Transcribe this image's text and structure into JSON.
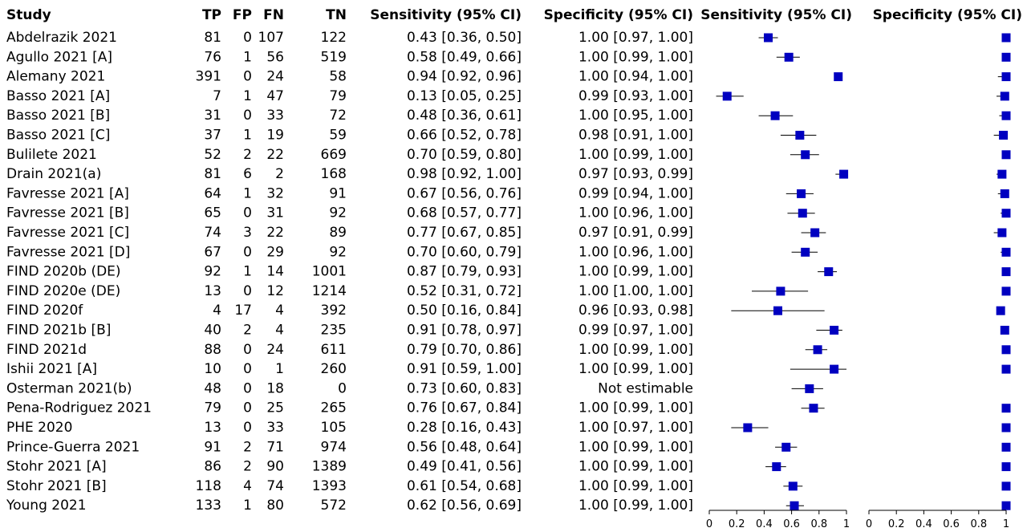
{
  "chart_data": {
    "type": "forest",
    "columns": [
      "Study",
      "TP",
      "FP",
      "FN",
      "TN",
      "Sensitivity (95% CI)",
      "Specificity (95% CI)",
      "Sensitivity (95% CI)",
      "Specificity (95% CI)"
    ],
    "marker_color": "#0000c0",
    "rows": [
      {
        "study": "Abdelrazik 2021",
        "tp": 81,
        "fp": 0,
        "fn": 107,
        "tn": 122,
        "sens_text": "0.43 [0.36, 0.50]",
        "spec_text": "1.00 [0.97, 1.00]",
        "sens": [
          0.43,
          0.36,
          0.5
        ],
        "spec": [
          1.0,
          0.97,
          1.0
        ]
      },
      {
        "study": "Agullo 2021 [A]",
        "tp": 76,
        "fp": 1,
        "fn": 56,
        "tn": 519,
        "sens_text": "0.58 [0.49, 0.66]",
        "spec_text": "1.00 [0.99, 1.00]",
        "sens": [
          0.58,
          0.49,
          0.66
        ],
        "spec": [
          1.0,
          0.99,
          1.0
        ]
      },
      {
        "study": "Alemany 2021",
        "tp": 391,
        "fp": 0,
        "fn": 24,
        "tn": 58,
        "sens_text": "0.94 [0.92, 0.96]",
        "spec_text": "1.00 [0.94, 1.00]",
        "sens": [
          0.94,
          0.92,
          0.96
        ],
        "spec": [
          1.0,
          0.94,
          1.0
        ]
      },
      {
        "study": "Basso 2021 [A]",
        "tp": 7,
        "fp": 1,
        "fn": 47,
        "tn": 79,
        "sens_text": "0.13 [0.05, 0.25]",
        "spec_text": "0.99 [0.93, 1.00]",
        "sens": [
          0.13,
          0.05,
          0.25
        ],
        "spec": [
          0.99,
          0.93,
          1.0
        ]
      },
      {
        "study": "Basso 2021 [B]",
        "tp": 31,
        "fp": 0,
        "fn": 33,
        "tn": 72,
        "sens_text": "0.48 [0.36, 0.61]",
        "spec_text": "1.00 [0.95, 1.00]",
        "sens": [
          0.48,
          0.36,
          0.61
        ],
        "spec": [
          1.0,
          0.95,
          1.0
        ]
      },
      {
        "study": "Basso 2021 [C]",
        "tp": 37,
        "fp": 1,
        "fn": 19,
        "tn": 59,
        "sens_text": "0.66 [0.52, 0.78]",
        "spec_text": "0.98 [0.91, 1.00]",
        "sens": [
          0.66,
          0.52,
          0.78
        ],
        "spec": [
          0.98,
          0.91,
          1.0
        ]
      },
      {
        "study": "Bulilete 2021",
        "tp": 52,
        "fp": 2,
        "fn": 22,
        "tn": 669,
        "sens_text": "0.70 [0.59, 0.80]",
        "spec_text": "1.00 [0.99, 1.00]",
        "sens": [
          0.7,
          0.59,
          0.8
        ],
        "spec": [
          1.0,
          0.99,
          1.0
        ]
      },
      {
        "study": "Drain 2021(a)",
        "tp": 81,
        "fp": 6,
        "fn": 2,
        "tn": 168,
        "sens_text": "0.98 [0.92, 1.00]",
        "spec_text": "0.97 [0.93, 0.99]",
        "sens": [
          0.98,
          0.92,
          1.0
        ],
        "spec": [
          0.97,
          0.93,
          0.99
        ]
      },
      {
        "study": "Favresse 2021 [A]",
        "tp": 64,
        "fp": 1,
        "fn": 32,
        "tn": 91,
        "sens_text": "0.67 [0.56, 0.76]",
        "spec_text": "0.99 [0.94, 1.00]",
        "sens": [
          0.67,
          0.56,
          0.76
        ],
        "spec": [
          0.99,
          0.94,
          1.0
        ]
      },
      {
        "study": "Favresse 2021 [B]",
        "tp": 65,
        "fp": 0,
        "fn": 31,
        "tn": 92,
        "sens_text": "0.68 [0.57, 0.77]",
        "spec_text": "1.00 [0.96, 1.00]",
        "sens": [
          0.68,
          0.57,
          0.77
        ],
        "spec": [
          1.0,
          0.96,
          1.0
        ]
      },
      {
        "study": "Favresse 2021 [C]",
        "tp": 74,
        "fp": 3,
        "fn": 22,
        "tn": 89,
        "sens_text": "0.77 [0.67, 0.85]",
        "spec_text": "0.97 [0.91, 0.99]",
        "sens": [
          0.77,
          0.67,
          0.85
        ],
        "spec": [
          0.97,
          0.91,
          0.99
        ]
      },
      {
        "study": "Favresse 2021 [D]",
        "tp": 67,
        "fp": 0,
        "fn": 29,
        "tn": 92,
        "sens_text": "0.70 [0.60, 0.79]",
        "spec_text": "1.00 [0.96, 1.00]",
        "sens": [
          0.7,
          0.6,
          0.79
        ],
        "spec": [
          1.0,
          0.96,
          1.0
        ]
      },
      {
        "study": "FIND 2020b (DE)",
        "tp": 92,
        "fp": 1,
        "fn": 14,
        "tn": 1001,
        "sens_text": "0.87 [0.79, 0.93]",
        "spec_text": "1.00 [0.99, 1.00]",
        "sens": [
          0.87,
          0.79,
          0.93
        ],
        "spec": [
          1.0,
          0.99,
          1.0
        ]
      },
      {
        "study": "FIND 2020e (DE)",
        "tp": 13,
        "fp": 0,
        "fn": 12,
        "tn": 1214,
        "sens_text": "0.52 [0.31, 0.72]",
        "spec_text": "1.00 [1.00, 1.00]",
        "sens": [
          0.52,
          0.31,
          0.72
        ],
        "spec": [
          1.0,
          1.0,
          1.0
        ]
      },
      {
        "study": "FIND 2020f",
        "tp": 4,
        "fp": 17,
        "fn": 4,
        "tn": 392,
        "sens_text": "0.50 [0.16, 0.84]",
        "spec_text": "0.96 [0.93, 0.98]",
        "sens": [
          0.5,
          0.16,
          0.84
        ],
        "spec": [
          0.96,
          0.93,
          0.98
        ]
      },
      {
        "study": "FIND 2021b [B]",
        "tp": 40,
        "fp": 2,
        "fn": 4,
        "tn": 235,
        "sens_text": "0.91 [0.78, 0.97]",
        "spec_text": "0.99 [0.97, 1.00]",
        "sens": [
          0.91,
          0.78,
          0.97
        ],
        "spec": [
          0.99,
          0.97,
          1.0
        ]
      },
      {
        "study": "FIND 2021d",
        "tp": 88,
        "fp": 0,
        "fn": 24,
        "tn": 611,
        "sens_text": "0.79 [0.70, 0.86]",
        "spec_text": "1.00 [0.99, 1.00]",
        "sens": [
          0.79,
          0.7,
          0.86
        ],
        "spec": [
          1.0,
          0.99,
          1.0
        ]
      },
      {
        "study": "Ishii 2021 [A]",
        "tp": 10,
        "fp": 0,
        "fn": 1,
        "tn": 260,
        "sens_text": "0.91 [0.59, 1.00]",
        "spec_text": "1.00 [0.99, 1.00]",
        "sens": [
          0.91,
          0.59,
          1.0
        ],
        "spec": [
          1.0,
          0.99,
          1.0
        ]
      },
      {
        "study": "Osterman 2021(b)",
        "tp": 48,
        "fp": 0,
        "fn": 18,
        "tn": 0,
        "sens_text": "0.73 [0.60, 0.83]",
        "spec_text": "Not estimable",
        "sens": [
          0.73,
          0.6,
          0.83
        ],
        "spec": null
      },
      {
        "study": "Pena-Rodriguez 2021",
        "tp": 79,
        "fp": 0,
        "fn": 25,
        "tn": 265,
        "sens_text": "0.76 [0.67, 0.84]",
        "spec_text": "1.00 [0.99, 1.00]",
        "sens": [
          0.76,
          0.67,
          0.84
        ],
        "spec": [
          1.0,
          0.99,
          1.0
        ]
      },
      {
        "study": "PHE 2020",
        "tp": 13,
        "fp": 0,
        "fn": 33,
        "tn": 105,
        "sens_text": "0.28 [0.16, 0.43]",
        "spec_text": "1.00 [0.97, 1.00]",
        "sens": [
          0.28,
          0.16,
          0.43
        ],
        "spec": [
          1.0,
          0.97,
          1.0
        ]
      },
      {
        "study": "Prince-Guerra 2021",
        "tp": 91,
        "fp": 2,
        "fn": 71,
        "tn": 974,
        "sens_text": "0.56 [0.48, 0.64]",
        "spec_text": "1.00 [0.99, 1.00]",
        "sens": [
          0.56,
          0.48,
          0.64
        ],
        "spec": [
          1.0,
          0.99,
          1.0
        ]
      },
      {
        "study": "Stohr 2021 [A]",
        "tp": 86,
        "fp": 2,
        "fn": 90,
        "tn": 1389,
        "sens_text": "0.49 [0.41, 0.56]",
        "spec_text": "1.00 [0.99, 1.00]",
        "sens": [
          0.49,
          0.41,
          0.56
        ],
        "spec": [
          1.0,
          0.99,
          1.0
        ]
      },
      {
        "study": "Stohr 2021 [B]",
        "tp": 118,
        "fp": 4,
        "fn": 74,
        "tn": 1393,
        "sens_text": "0.61 [0.54, 0.68]",
        "spec_text": "1.00 [0.99, 1.00]",
        "sens": [
          0.61,
          0.54,
          0.68
        ],
        "spec": [
          1.0,
          0.99,
          1.0
        ]
      },
      {
        "study": "Young 2021",
        "tp": 133,
        "fp": 1,
        "fn": 80,
        "tn": 572,
        "sens_text": "0.62 [0.56, 0.69]",
        "spec_text": "1.00 [0.99, 1.00]",
        "sens": [
          0.62,
          0.56,
          0.69
        ],
        "spec": [
          1.0,
          0.99,
          1.0
        ]
      }
    ],
    "axes": [
      {
        "name": "sensitivity",
        "xlim": [
          0,
          1
        ],
        "ticks": [
          "0",
          "0.2",
          "0.4",
          "0.6",
          "0.8",
          "1"
        ]
      },
      {
        "name": "specificity",
        "xlim": [
          0,
          1
        ],
        "ticks": [
          "0",
          "0.2",
          "0.4",
          "0.6",
          "0.8",
          "1"
        ]
      }
    ]
  }
}
